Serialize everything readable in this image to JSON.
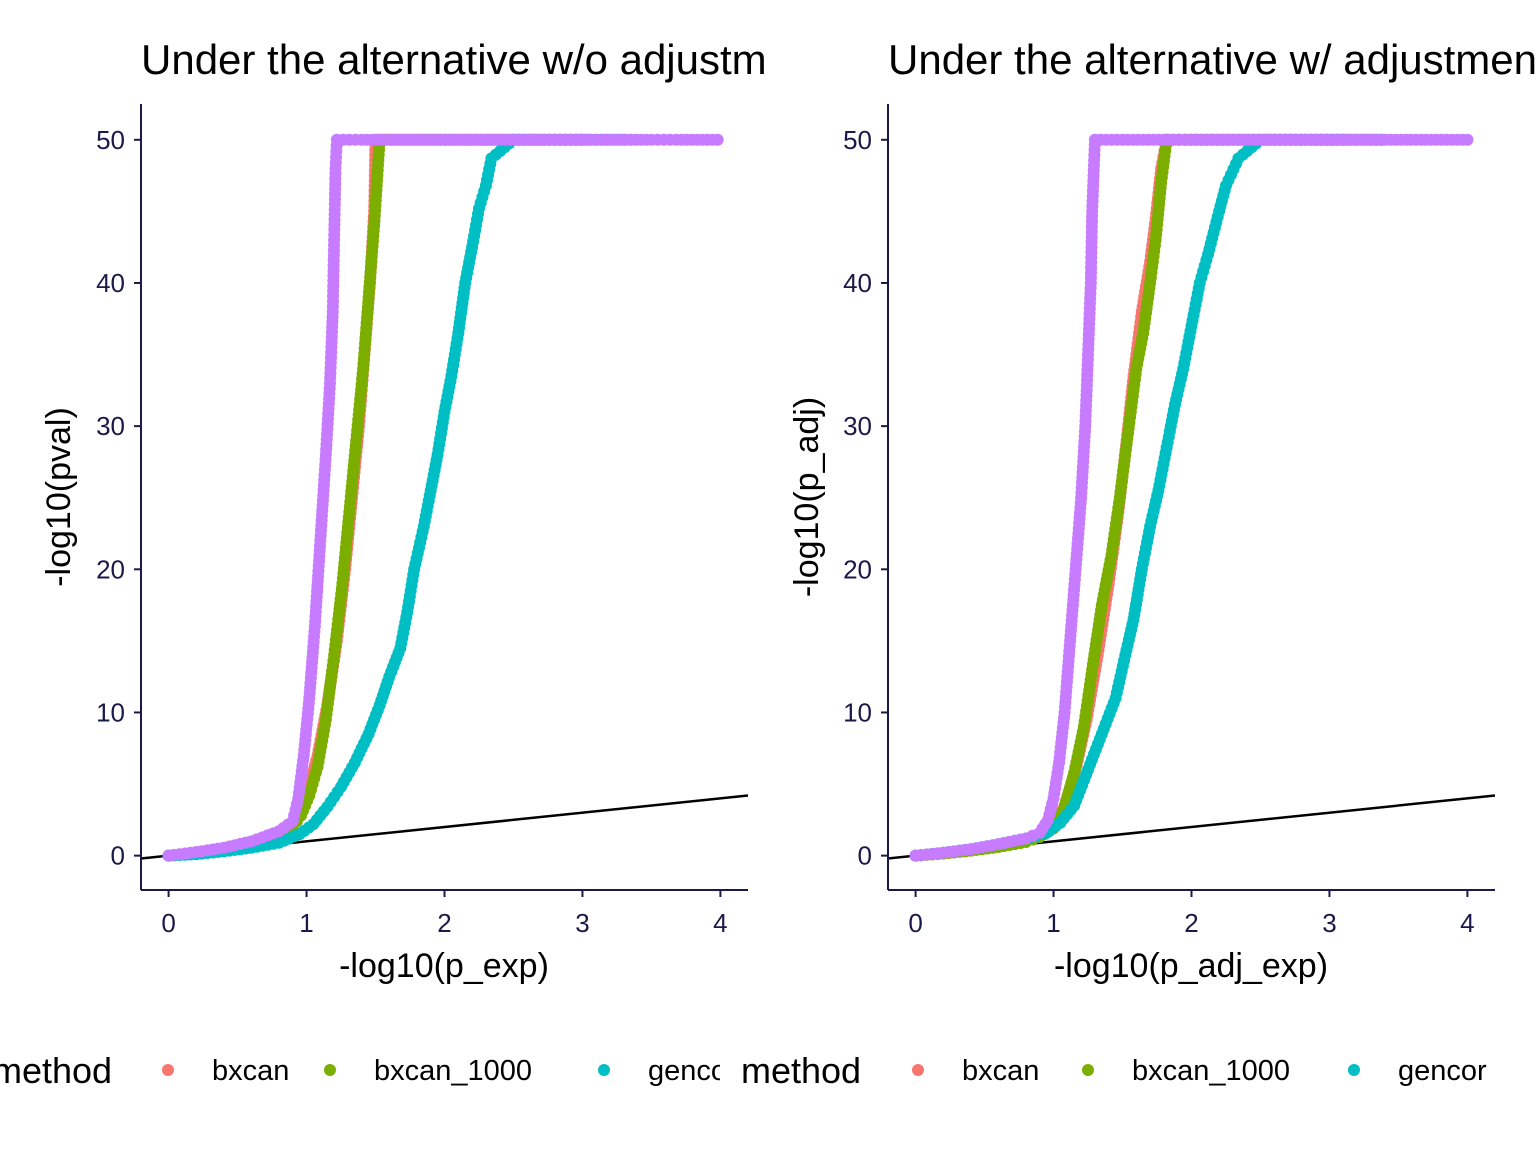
{
  "chart_data": [
    {
      "type": "scatter",
      "title": "Under the alternative w/o adjustment",
      "xlabel": "-log10(p_exp)",
      "ylabel": "-log10(pval)",
      "xlim": [
        -0.2,
        4.2
      ],
      "ylim": [
        -2.4,
        52.5
      ],
      "xticks": [
        "0",
        "1",
        "2",
        "3",
        "4"
      ],
      "yticks": [
        "0",
        "10",
        "20",
        "30",
        "40",
        "50"
      ],
      "reference_line": {
        "type": "identity",
        "from": [
          -0.2,
          -0.2
        ],
        "to": [
          4.2,
          4.2
        ]
      },
      "legend": {
        "title": "method",
        "position": "bottom",
        "items": [
          {
            "label": "bxcan",
            "color": "#F8766D"
          },
          {
            "label": "bxcan_1000",
            "color": "#7CAE00"
          },
          {
            "label": "gencor",
            "color": "#00BFC4"
          },
          {
            "label": "",
            "color": "#C77CFF"
          }
        ]
      },
      "series": [
        {
          "color": "#F8766D",
          "points": [
            [
              0,
              0
            ],
            [
              0.2,
              0.2
            ],
            [
              0.4,
              0.5
            ],
            [
              0.6,
              0.95
            ],
            [
              0.8,
              1.7
            ],
            [
              0.9,
              2.4
            ],
            [
              0.96,
              3.3
            ],
            [
              1.02,
              4.8
            ],
            [
              1.08,
              7.0
            ],
            [
              1.15,
              10.5
            ],
            [
              1.22,
              15.0
            ],
            [
              1.28,
              20.0
            ],
            [
              1.33,
              25.0
            ],
            [
              1.38,
              30.0
            ],
            [
              1.42,
              35.0
            ],
            [
              1.46,
              40.0
            ],
            [
              1.49,
              45.0
            ],
            [
              1.5,
              50.0
            ],
            [
              1.6,
              50
            ],
            [
              1.8,
              50
            ],
            [
              2.0,
              50
            ],
            [
              2.3,
              50
            ],
            [
              2.6,
              50
            ],
            [
              2.85,
              50
            ],
            [
              3.0,
              50
            ],
            [
              3.05,
              50
            ]
          ]
        },
        {
          "color": "#7CAE00",
          "points": [
            [
              0,
              0
            ],
            [
              0.2,
              0.2
            ],
            [
              0.4,
              0.45
            ],
            [
              0.6,
              0.85
            ],
            [
              0.8,
              1.5
            ],
            [
              0.9,
              2.0
            ],
            [
              0.96,
              2.8
            ],
            [
              1.02,
              4.2
            ],
            [
              1.08,
              6.2
            ],
            [
              1.14,
              9.5
            ],
            [
              1.2,
              14.0
            ],
            [
              1.26,
              19.0
            ],
            [
              1.31,
              24.0
            ],
            [
              1.36,
              29.0
            ],
            [
              1.41,
              34.0
            ],
            [
              1.45,
              39.0
            ],
            [
              1.49,
              44.0
            ],
            [
              1.53,
              50.0
            ],
            [
              1.7,
              50
            ],
            [
              1.9,
              50
            ],
            [
              2.2,
              50
            ],
            [
              2.5,
              50
            ],
            [
              2.75,
              50
            ],
            [
              3.0,
              50
            ]
          ]
        },
        {
          "color": "#00BFC4",
          "points": [
            [
              0,
              0
            ],
            [
              0.2,
              0.1
            ],
            [
              0.4,
              0.3
            ],
            [
              0.6,
              0.55
            ],
            [
              0.8,
              0.9
            ],
            [
              0.95,
              1.5
            ],
            [
              1.05,
              2.2
            ],
            [
              1.15,
              3.4
            ],
            [
              1.25,
              4.8
            ],
            [
              1.35,
              6.5
            ],
            [
              1.45,
              8.5
            ],
            [
              1.53,
              10.5
            ],
            [
              1.6,
              12.5
            ],
            [
              1.68,
              14.5
            ],
            [
              1.73,
              17.0
            ],
            [
              1.78,
              20.0
            ],
            [
              1.85,
              23.0
            ],
            [
              1.9,
              25.5
            ],
            [
              1.95,
              28.0
            ],
            [
              2.0,
              31.0
            ],
            [
              2.05,
              33.5
            ],
            [
              2.1,
              36.5
            ],
            [
              2.15,
              40.0
            ],
            [
              2.2,
              42.5
            ],
            [
              2.25,
              45.2
            ],
            [
              2.3,
              46.8
            ],
            [
              2.34,
              48.7
            ],
            [
              2.5,
              50
            ],
            [
              2.8,
              50
            ],
            [
              3.1,
              50
            ],
            [
              3.3,
              50
            ],
            [
              3.35,
              50
            ]
          ]
        },
        {
          "color": "#C77CFF",
          "points": [
            [
              0,
              0
            ],
            [
              0.2,
              0.25
            ],
            [
              0.4,
              0.55
            ],
            [
              0.6,
              1.0
            ],
            [
              0.8,
              1.7
            ],
            [
              0.9,
              2.4
            ],
            [
              0.94,
              4.0
            ],
            [
              0.98,
              7.0
            ],
            [
              1.02,
              11.0
            ],
            [
              1.06,
              16.0
            ],
            [
              1.1,
              22.0
            ],
            [
              1.14,
              28.0
            ],
            [
              1.17,
              33.0
            ],
            [
              1.19,
              38.0
            ],
            [
              1.2,
              43.0
            ],
            [
              1.21,
              48.0
            ],
            [
              1.22,
              50.0
            ],
            [
              1.4,
              50
            ],
            [
              1.7,
              50
            ],
            [
              2.0,
              50
            ],
            [
              2.4,
              50
            ],
            [
              2.8,
              50
            ],
            [
              3.2,
              50
            ],
            [
              3.5,
              50
            ],
            [
              3.68,
              50
            ],
            [
              3.98,
              50
            ]
          ]
        }
      ]
    },
    {
      "type": "scatter",
      "title": "Under the alternative w/ adjustment",
      "xlabel": "-log10(p_adj_exp)",
      "ylabel": "-log10(p_adj)",
      "xlim": [
        -0.2,
        4.2
      ],
      "ylim": [
        -2.4,
        52.5
      ],
      "xticks": [
        "0",
        "1",
        "2",
        "3",
        "4"
      ],
      "yticks": [
        "0",
        "10",
        "20",
        "30",
        "40",
        "50"
      ],
      "reference_line": {
        "type": "identity",
        "from": [
          -0.2,
          -0.2
        ],
        "to": [
          4.2,
          4.2
        ]
      },
      "legend": {
        "title": "method",
        "position": "bottom",
        "items": [
          {
            "label": "bxcan",
            "color": "#F8766D"
          },
          {
            "label": "bxcan_1000",
            "color": "#7CAE00"
          },
          {
            "label": "gencor",
            "color": "#00BFC4"
          },
          {
            "label": "",
            "color": "#C77CFF"
          }
        ]
      },
      "series": [
        {
          "color": "#F8766D",
          "points": [
            [
              0,
              0
            ],
            [
              0.2,
              0.15
            ],
            [
              0.4,
              0.35
            ],
            [
              0.6,
              0.65
            ],
            [
              0.8,
              1.0
            ],
            [
              0.9,
              1.4
            ],
            [
              1.0,
              2.0
            ],
            [
              1.08,
              3.5
            ],
            [
              1.16,
              6.0
            ],
            [
              1.24,
              9.5
            ],
            [
              1.32,
              14.0
            ],
            [
              1.4,
              19.0
            ],
            [
              1.47,
              24.0
            ],
            [
              1.53,
              29.0
            ],
            [
              1.58,
              33.5
            ],
            [
              1.64,
              38.0
            ],
            [
              1.7,
              41.5
            ],
            [
              1.74,
              44.5
            ],
            [
              1.78,
              48.0
            ],
            [
              1.82,
              50.0
            ],
            [
              2.0,
              50
            ],
            [
              2.3,
              50
            ],
            [
              2.6,
              50
            ],
            [
              2.9,
              50
            ],
            [
              3.1,
              50
            ]
          ]
        },
        {
          "color": "#7CAE00",
          "points": [
            [
              0,
              0
            ],
            [
              0.2,
              0.15
            ],
            [
              0.4,
              0.35
            ],
            [
              0.6,
              0.6
            ],
            [
              0.8,
              0.95
            ],
            [
              0.9,
              1.3
            ],
            [
              1.0,
              1.9
            ],
            [
              1.08,
              3.4
            ],
            [
              1.15,
              5.8
            ],
            [
              1.22,
              9.0
            ],
            [
              1.28,
              13.0
            ],
            [
              1.35,
              17.5
            ],
            [
              1.42,
              21.0
            ],
            [
              1.48,
              25.0
            ],
            [
              1.54,
              29.5
            ],
            [
              1.6,
              34.0
            ],
            [
              1.65,
              36.5
            ],
            [
              1.7,
              40.0
            ],
            [
              1.74,
              43.0
            ],
            [
              1.78,
              47.0
            ],
            [
              1.82,
              50.0
            ],
            [
              2.0,
              50
            ],
            [
              2.3,
              50
            ],
            [
              2.6,
              50
            ],
            [
              2.9,
              50
            ],
            [
              3.2,
              50
            ],
            [
              3.38,
              50
            ]
          ]
        },
        {
          "color": "#00BFC4",
          "points": [
            [
              0,
              0
            ],
            [
              0.2,
              0.2
            ],
            [
              0.4,
              0.45
            ],
            [
              0.6,
              0.8
            ],
            [
              0.8,
              1.2
            ],
            [
              0.95,
              1.6
            ],
            [
              1.05,
              2.3
            ],
            [
              1.15,
              3.5
            ],
            [
              1.25,
              6.0
            ],
            [
              1.35,
              8.5
            ],
            [
              1.45,
              11.0
            ],
            [
              1.52,
              14.0
            ],
            [
              1.58,
              16.5
            ],
            [
              1.64,
              20.0
            ],
            [
              1.7,
              23.0
            ],
            [
              1.76,
              25.5
            ],
            [
              1.82,
              28.5
            ],
            [
              1.88,
              31.5
            ],
            [
              1.94,
              34.0
            ],
            [
              2.0,
              37.0
            ],
            [
              2.06,
              40.0
            ],
            [
              2.12,
              42.0
            ],
            [
              2.2,
              45.0
            ],
            [
              2.25,
              46.8
            ],
            [
              2.34,
              48.7
            ],
            [
              2.5,
              50
            ],
            [
              2.8,
              50
            ],
            [
              3.1,
              50
            ],
            [
              3.35,
              50
            ],
            [
              3.38,
              50
            ]
          ]
        },
        {
          "color": "#C77CFF",
          "points": [
            [
              0,
              0
            ],
            [
              0.2,
              0.2
            ],
            [
              0.4,
              0.45
            ],
            [
              0.6,
              0.8
            ],
            [
              0.8,
              1.2
            ],
            [
              0.9,
              1.6
            ],
            [
              0.96,
              2.5
            ],
            [
              1.0,
              4.0
            ],
            [
              1.04,
              6.5
            ],
            [
              1.08,
              10.0
            ],
            [
              1.12,
              15.0
            ],
            [
              1.16,
              20.0
            ],
            [
              1.2,
              25.0
            ],
            [
              1.23,
              30.0
            ],
            [
              1.25,
              35.0
            ],
            [
              1.27,
              40.0
            ],
            [
              1.28,
              45.0
            ],
            [
              1.3,
              50.0
            ],
            [
              1.5,
              50
            ],
            [
              1.8,
              50
            ],
            [
              2.1,
              50
            ],
            [
              2.5,
              50
            ],
            [
              2.9,
              50
            ],
            [
              3.3,
              50
            ],
            [
              3.7,
              50
            ],
            [
              4.0,
              50
            ]
          ]
        }
      ]
    }
  ]
}
